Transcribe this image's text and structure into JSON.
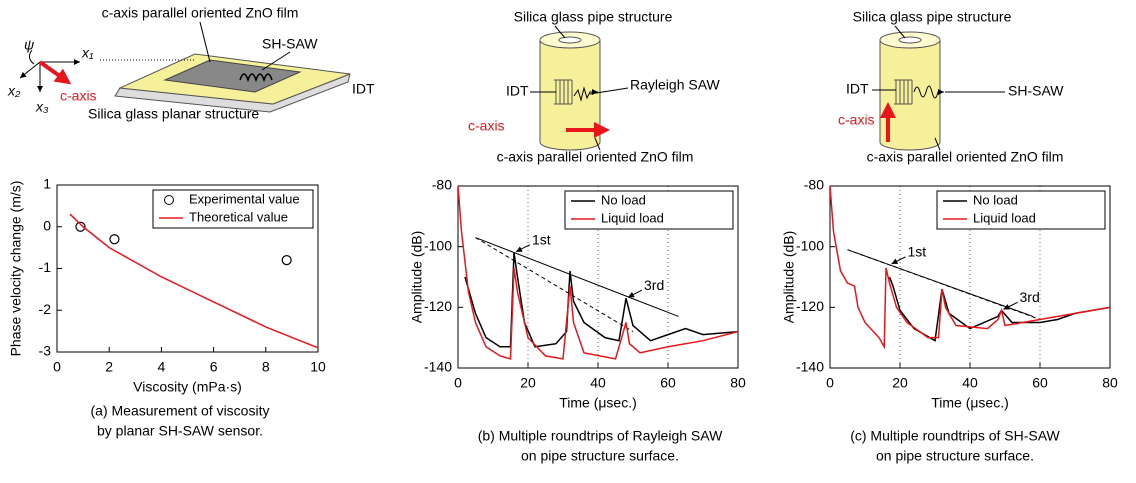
{
  "chart_data": [
    {
      "type": "scatter",
      "caption": [
        "(a) Measurement of viscosity",
        "by planar SH-SAW sensor."
      ],
      "xlabel": "Viscosity (mPa·s)",
      "ylabel": "Phase velocity change (m/s)",
      "xlim": [
        0,
        10
      ],
      "xticks": [
        0,
        2,
        4,
        6,
        8,
        10
      ],
      "ylim": [
        -3,
        1
      ],
      "yticks": [
        -3,
        -2,
        -1,
        0,
        1
      ],
      "grid": false,
      "legend": "upper right",
      "series": [
        {
          "name": "Experimental value",
          "style": "marker",
          "color": "#000000",
          "x": [
            0.9,
            2.2,
            8.8
          ],
          "values": [
            0,
            -0.3,
            -0.8
          ]
        },
        {
          "name": "Theoretical value",
          "style": "line",
          "color": "#e8161b",
          "x": [
            0.5,
            1,
            2,
            3,
            4,
            5,
            6,
            7,
            8,
            9,
            10
          ],
          "values": [
            0.3,
            0,
            -0.5,
            -0.85,
            -1.2,
            -1.5,
            -1.8,
            -2.1,
            -2.4,
            -2.65,
            -2.9
          ]
        }
      ]
    },
    {
      "type": "line",
      "caption": [
        "(b) Multiple roundtrips of Rayleigh SAW",
        "on pipe structure surface."
      ],
      "xlabel": "Time (μsec.)",
      "ylabel": "Amplitude (dB)",
      "xlim": [
        0,
        80
      ],
      "xticks": [
        0,
        20,
        40,
        60,
        80
      ],
      "ylim": [
        -140,
        -80
      ],
      "yticks": [
        -140,
        -120,
        -100,
        -80
      ],
      "grid": "x",
      "legend": "upper right",
      "series": [
        {
          "name": "No load",
          "color": "#000000",
          "x": [
            2,
            5,
            8,
            12,
            15,
            16,
            17,
            19,
            22,
            28,
            31,
            32,
            33,
            36,
            42,
            46,
            48,
            50,
            55,
            60,
            65,
            70,
            80
          ],
          "values": [
            -110,
            -122,
            -130,
            -133,
            -133,
            -102,
            -110,
            -125,
            -133,
            -132,
            -128,
            -108,
            -118,
            -125,
            -130,
            -131,
            -117,
            -126,
            -131,
            -129,
            -127,
            -129,
            -128
          ]
        },
        {
          "name": "Liquid load",
          "color": "#e8161b",
          "x": [
            0,
            1,
            3,
            5,
            8,
            12,
            15,
            16,
            17,
            20,
            25,
            30,
            32,
            33,
            36,
            45,
            48,
            49,
            52,
            60,
            70,
            80
          ],
          "values": [
            -80,
            -95,
            -115,
            -125,
            -133,
            -136,
            -137,
            -107,
            -115,
            -130,
            -136,
            -137,
            -113,
            -125,
            -135,
            -137,
            -125,
            -132,
            -135,
            -133,
            -131,
            -128
          ]
        }
      ],
      "guides": [
        {
          "dash": false,
          "x": [
            5,
            63
          ],
          "values": [
            -97,
            -123
          ]
        },
        {
          "dash": true,
          "x": [
            5,
            50
          ],
          "values": [
            -97,
            -128
          ]
        }
      ],
      "annotations": [
        {
          "text": "1st",
          "x": 16,
          "y": -102
        },
        {
          "text": "3rd",
          "x": 48,
          "y": -117
        }
      ]
    },
    {
      "type": "line",
      "caption": [
        "(c) Multiple roundtrips of SH-SAW",
        "on pipe structure surface."
      ],
      "xlabel": "Time (μsec.)",
      "ylabel": "Amplitude (dB)",
      "xlim": [
        0,
        80
      ],
      "xticks": [
        0,
        20,
        40,
        60,
        80
      ],
      "ylim": [
        -140,
        -80
      ],
      "yticks": [
        -140,
        -120,
        -100,
        -80
      ],
      "grid": "x",
      "legend": "upper right",
      "series": [
        {
          "name": "No load",
          "color": "#000000",
          "x": [
            17,
            18,
            20,
            24,
            30,
            32,
            34,
            40,
            48,
            49,
            52,
            60,
            65,
            70,
            80
          ],
          "values": [
            -110,
            -113,
            -121,
            -127,
            -131,
            -114,
            -122,
            -127,
            -123,
            -121,
            -125,
            -125,
            -124,
            -122,
            -120
          ]
        },
        {
          "name": "Liquid load",
          "color": "#e8161b",
          "x": [
            0,
            1,
            3,
            5,
            7,
            8,
            10,
            14,
            15.5,
            16,
            17,
            19,
            22,
            28,
            31,
            32,
            33,
            36,
            45,
            48,
            49,
            50,
            55,
            60,
            70,
            80
          ],
          "values": [
            -80,
            -95,
            -108,
            -112,
            -113,
            -120,
            -125,
            -130,
            -133,
            -107,
            -112,
            -120,
            -125,
            -130,
            -130,
            -114,
            -120,
            -126,
            -127,
            -124,
            -121,
            -126,
            -125,
            -124,
            -122,
            -120
          ]
        }
      ],
      "guides": [
        {
          "dash": false,
          "x": [
            5,
            58
          ],
          "values": [
            -101,
            -123
          ]
        },
        {
          "dash": true,
          "x": [
            5,
            60
          ],
          "values": [
            -101,
            -124
          ]
        }
      ],
      "annotations": [
        {
          "text": "1st",
          "x": 17,
          "y": -106
        },
        {
          "text": "3rd",
          "x": 49,
          "y": -121
        }
      ]
    }
  ],
  "diagrams": [
    {
      "film": "c-axis parallel oriented ZnO film",
      "wave": "SH-SAW",
      "idt": "IDT",
      "substrate": "Silica glass planar structure",
      "psi": "ψ",
      "x1": "x₁",
      "x2": "x₂",
      "x3": "x₃",
      "axis": "c-axis"
    },
    {
      "substrate": "Silica glass pipe structure",
      "idt": "IDT",
      "wave": "Rayleigh SAW",
      "axis": "c-axis",
      "film": "c-axis parallel oriented ZnO film"
    },
    {
      "substrate": "Silica glass pipe structure",
      "idt": "IDT",
      "wave": "SH-SAW",
      "axis": "c-axis",
      "film": "c-axis parallel oriented ZnO film"
    }
  ]
}
